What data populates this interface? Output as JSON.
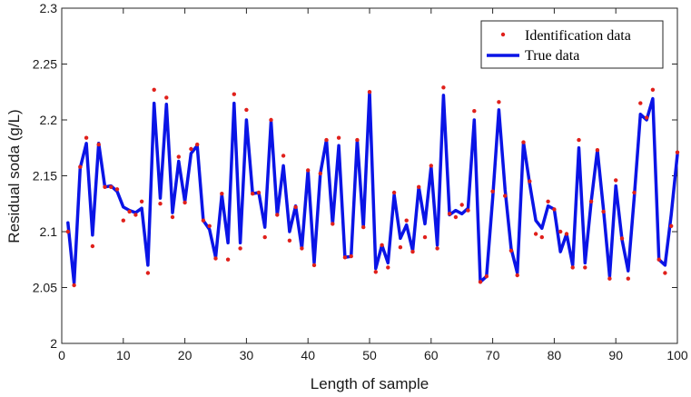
{
  "chart_data": {
    "type": "line",
    "title": "",
    "xlabel": "Length of sample",
    "ylabel": "Residual soda  (g/L)",
    "xlim": [
      0,
      100
    ],
    "ylim": [
      2,
      2.3
    ],
    "xticks": [
      0,
      10,
      20,
      30,
      40,
      50,
      60,
      70,
      80,
      90,
      100
    ],
    "yticks": [
      2,
      2.05,
      2.1,
      2.15,
      2.2,
      2.25,
      2.3
    ],
    "xtick_labels": [
      "0",
      "10",
      "20",
      "30",
      "40",
      "50",
      "60",
      "70",
      "80",
      "90",
      "100"
    ],
    "ytick_labels": [
      "2",
      "2.05",
      "2.1",
      "2.15",
      "2.2",
      "2.25",
      "2.3"
    ],
    "grid": false,
    "legend_position": "top-right",
    "series": [
      {
        "name": "Identification data",
        "style": "markers",
        "color": "#e0201b",
        "x": [
          1,
          2,
          3,
          4,
          5,
          6,
          7,
          8,
          9,
          10,
          11,
          12,
          13,
          14,
          15,
          16,
          17,
          18,
          19,
          20,
          21,
          22,
          23,
          24,
          25,
          26,
          27,
          28,
          29,
          30,
          31,
          32,
          33,
          34,
          35,
          36,
          37,
          38,
          39,
          40,
          41,
          42,
          43,
          44,
          45,
          46,
          47,
          48,
          49,
          50,
          51,
          52,
          53,
          54,
          55,
          56,
          57,
          58,
          59,
          60,
          61,
          62,
          63,
          64,
          65,
          66,
          67,
          68,
          69,
          70,
          71,
          72,
          73,
          74,
          75,
          76,
          77,
          78,
          79,
          80,
          81,
          82,
          83,
          84,
          85,
          86,
          87,
          88,
          89,
          90,
          91,
          92,
          93,
          94,
          95,
          96,
          97,
          98,
          99,
          100
        ],
        "y": [
          2.1,
          2.052,
          2.158,
          2.184,
          2.087,
          2.178,
          2.14,
          2.14,
          2.138,
          2.11,
          2.118,
          2.115,
          2.127,
          2.063,
          2.227,
          2.125,
          2.22,
          2.113,
          2.167,
          2.126,
          2.174,
          2.178,
          2.11,
          2.105,
          2.076,
          2.134,
          2.075,
          2.223,
          2.085,
          2.209,
          2.134,
          2.135,
          2.095,
          2.2,
          2.115,
          2.168,
          2.092,
          2.122,
          2.085,
          2.155,
          2.07,
          2.152,
          2.182,
          2.107,
          2.184,
          2.077,
          2.078,
          2.182,
          2.104,
          2.225,
          2.064,
          2.088,
          2.068,
          2.135,
          2.086,
          2.11,
          2.082,
          2.14,
          2.095,
          2.159,
          2.085,
          2.229,
          2.116,
          2.113,
          2.124,
          2.119,
          2.208,
          2.055,
          2.06,
          2.136,
          2.216,
          2.132,
          2.083,
          2.061,
          2.18,
          2.145,
          2.098,
          2.095,
          2.127,
          2.12,
          2.1,
          2.098,
          2.068,
          2.182,
          2.068,
          2.127,
          2.173,
          2.118,
          2.058,
          2.146,
          2.094,
          2.058,
          2.135,
          2.215,
          2.202,
          2.227,
          2.075,
          2.063,
          2.105,
          2.171
        ]
      },
      {
        "name": "True data",
        "style": "line",
        "color": "#0a14e6",
        "x": [
          1,
          2,
          3,
          4,
          5,
          6,
          7,
          8,
          9,
          10,
          11,
          12,
          13,
          14,
          15,
          16,
          17,
          18,
          19,
          20,
          21,
          22,
          23,
          24,
          25,
          26,
          27,
          28,
          29,
          30,
          31,
          32,
          33,
          34,
          35,
          36,
          37,
          38,
          39,
          40,
          41,
          42,
          43,
          44,
          45,
          46,
          47,
          48,
          49,
          50,
          51,
          52,
          53,
          54,
          55,
          56,
          57,
          58,
          59,
          60,
          61,
          62,
          63,
          64,
          65,
          66,
          67,
          68,
          69,
          70,
          71,
          72,
          73,
          74,
          75,
          76,
          77,
          78,
          79,
          80,
          81,
          82,
          83,
          84,
          85,
          86,
          87,
          88,
          89,
          90,
          91,
          92,
          93,
          94,
          95,
          96,
          97,
          98,
          99,
          100
        ],
        "y": [
          2.108,
          2.054,
          2.157,
          2.179,
          2.097,
          2.179,
          2.14,
          2.141,
          2.136,
          2.122,
          2.119,
          2.117,
          2.121,
          2.07,
          2.215,
          2.13,
          2.214,
          2.117,
          2.163,
          2.127,
          2.17,
          2.177,
          2.11,
          2.102,
          2.077,
          2.133,
          2.09,
          2.215,
          2.09,
          2.2,
          2.134,
          2.135,
          2.104,
          2.199,
          2.115,
          2.159,
          2.1,
          2.123,
          2.085,
          2.155,
          2.072,
          2.152,
          2.182,
          2.107,
          2.177,
          2.077,
          2.078,
          2.182,
          2.104,
          2.225,
          2.067,
          2.088,
          2.072,
          2.133,
          2.094,
          2.106,
          2.083,
          2.14,
          2.107,
          2.158,
          2.088,
          2.222,
          2.115,
          2.119,
          2.116,
          2.121,
          2.2,
          2.055,
          2.06,
          2.13,
          2.209,
          2.138,
          2.085,
          2.063,
          2.18,
          2.143,
          2.11,
          2.103,
          2.123,
          2.12,
          2.082,
          2.098,
          2.07,
          2.175,
          2.072,
          2.127,
          2.173,
          2.12,
          2.06,
          2.141,
          2.093,
          2.065,
          2.131,
          2.205,
          2.2,
          2.219,
          2.075,
          2.07,
          2.115,
          2.169
        ]
      }
    ]
  }
}
